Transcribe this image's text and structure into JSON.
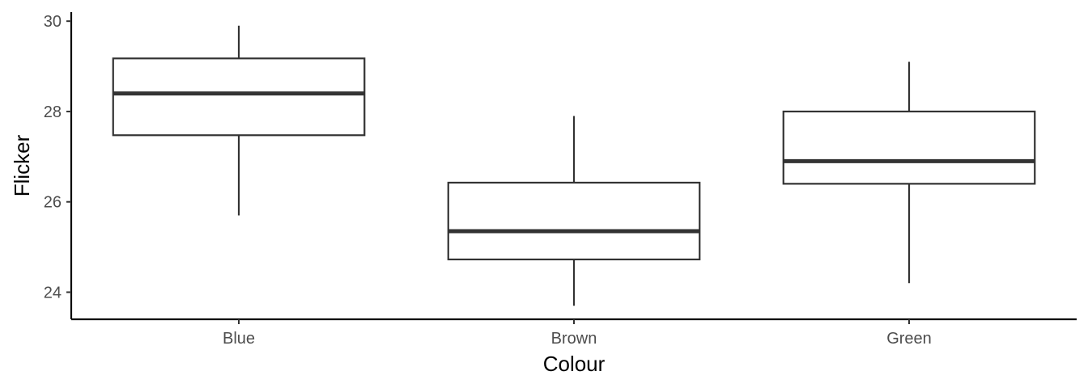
{
  "chart_data": {
    "type": "boxplot",
    "xlabel": "Colour",
    "ylabel": "Flicker",
    "categories": [
      "Blue",
      "Brown",
      "Green"
    ],
    "boxes": [
      {
        "category": "Blue",
        "min": 25.7,
        "q1": 27.475,
        "median": 28.4,
        "q3": 29.175,
        "max": 29.9
      },
      {
        "category": "Brown",
        "min": 23.7,
        "q1": 24.725,
        "median": 25.35,
        "q3": 26.425,
        "max": 27.9
      },
      {
        "category": "Green",
        "min": 24.2,
        "q1": 26.4,
        "median": 26.9,
        "q3": 28.0,
        "max": 29.1
      }
    ],
    "ylim": [
      23.4,
      30.2
    ],
    "yticks": [
      24,
      26,
      28,
      30
    ],
    "grid": false,
    "legend": "none",
    "colors": {
      "box_fill": "#ffffff",
      "box_stroke": "#333333",
      "axis": "#000000",
      "tick_label": "#4d4d4d"
    }
  }
}
